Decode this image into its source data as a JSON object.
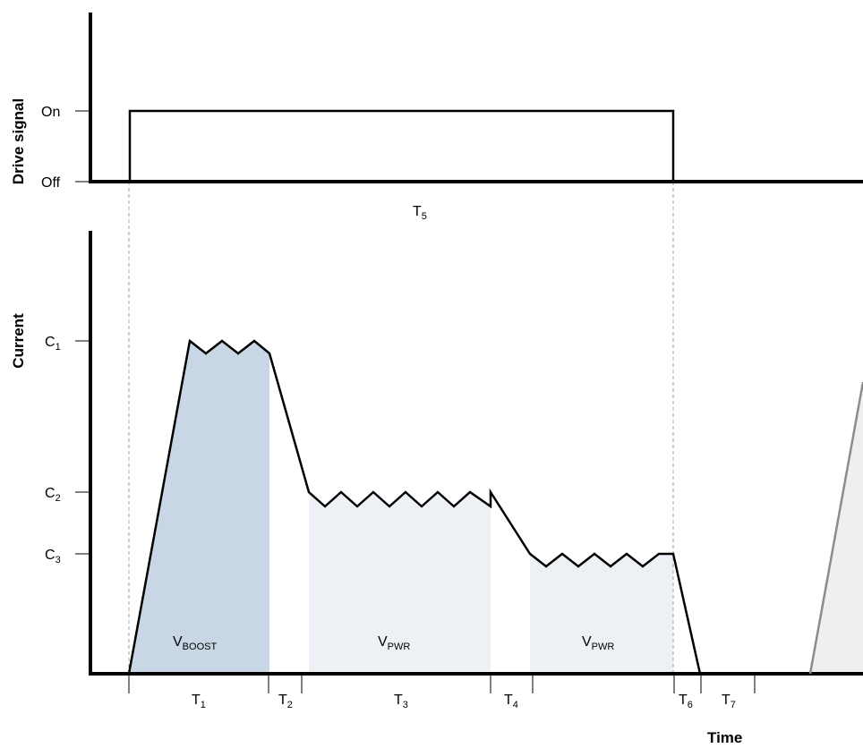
{
  "drive_panel": {
    "ylabel": "Drive signal",
    "levels": {
      "on": "On",
      "off": "Off"
    },
    "span_label": {
      "main": "T",
      "sub": "5"
    }
  },
  "current_panel": {
    "ylabel": "Current",
    "xlabel": "Time",
    "levels": [
      {
        "main": "C",
        "sub": "1"
      },
      {
        "main": "C",
        "sub": "2"
      },
      {
        "main": "C",
        "sub": "3"
      }
    ],
    "regions": [
      {
        "main": "V",
        "sub": "BOOST"
      },
      {
        "main": "V",
        "sub": "PWR"
      },
      {
        "main": "V",
        "sub": "PWR"
      }
    ],
    "phases": [
      {
        "main": "T",
        "sub": "1"
      },
      {
        "main": "T",
        "sub": "2"
      },
      {
        "main": "T",
        "sub": "3"
      },
      {
        "main": "T",
        "sub": "4"
      },
      {
        "main": "T",
        "sub": "6"
      },
      {
        "main": "T",
        "sub": "7"
      }
    ]
  },
  "colors": {
    "boost_fill": "#c9d6e5",
    "pwr_fill": "#edf1f6",
    "next_cycle_fill": "#efefef",
    "next_cycle_line": "#8c8c8c",
    "guide_line": "#a0a0a0",
    "waveform": "#000000"
  }
}
